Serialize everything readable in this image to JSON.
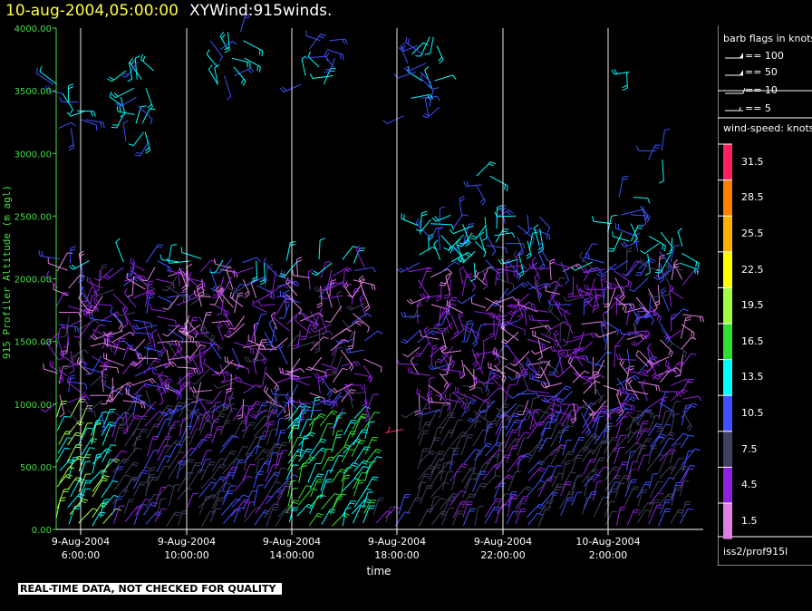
{
  "header": {
    "datetime": "10-aug-2004,05:00:00",
    "product": "XYWind:915winds."
  },
  "legend": {
    "barb_title": "barb flags in knots",
    "barbs": [
      {
        "label": "== 100"
      },
      {
        "label": "== 50"
      },
      {
        "label": "== 10"
      },
      {
        "label": "== 5"
      }
    ],
    "speed_title": "wind-speed: knots",
    "speed_levels": [
      {
        "label": "31.5",
        "color": "#ff2060"
      },
      {
        "label": "28.5",
        "color": "#ff8000"
      },
      {
        "label": "25.5",
        "color": "#ffb000"
      },
      {
        "label": "22.5",
        "color": "#ffff00"
      },
      {
        "label": "19.5",
        "color": "#a0ff40"
      },
      {
        "label": "16.5",
        "color": "#30e030"
      },
      {
        "label": "13.5",
        "color": "#00ffff"
      },
      {
        "label": "10.5",
        "color": "#4050ff"
      },
      {
        "label": "7.5",
        "color": "#404060"
      },
      {
        "label": "4.5",
        "color": "#9020e0"
      },
      {
        "label": "1.5",
        "color": "#e080e0"
      }
    ],
    "station": "iss2/prof915l"
  },
  "footer": {
    "qc_note": "REAL-TIME DATA, NOT CHECKED FOR QUALITY"
  },
  "chart_data": {
    "type": "scatter",
    "title": "XYWind:915winds.",
    "xlabel": "time",
    "ylabel": "915 Profiler Altitude (m agl)",
    "ylim": [
      0,
      4000
    ],
    "y_ticks": [
      "0.00",
      "500.00",
      "1000.00",
      "1500.00",
      "2000.00",
      "2500.00",
      "3000.00",
      "3500.00",
      "4000.00"
    ],
    "x_ticks": [
      {
        "date": "9-Aug-2004",
        "time": "6:00:00"
      },
      {
        "date": "9-Aug-2004",
        "time": "10:00:00"
      },
      {
        "date": "9-Aug-2004",
        "time": "14:00:00"
      },
      {
        "date": "9-Aug-2004",
        "time": "18:00:00"
      },
      {
        "date": "9-Aug-2004",
        "time": "22:00:00"
      },
      {
        "date": "10-Aug-2004",
        "time": "2:00:00"
      }
    ],
    "grid": "vertical lines at each time tick",
    "colors": {
      "axis_y": "#40e040",
      "axis_x": "#ffffff",
      "grid": "#ffffff"
    }
  }
}
